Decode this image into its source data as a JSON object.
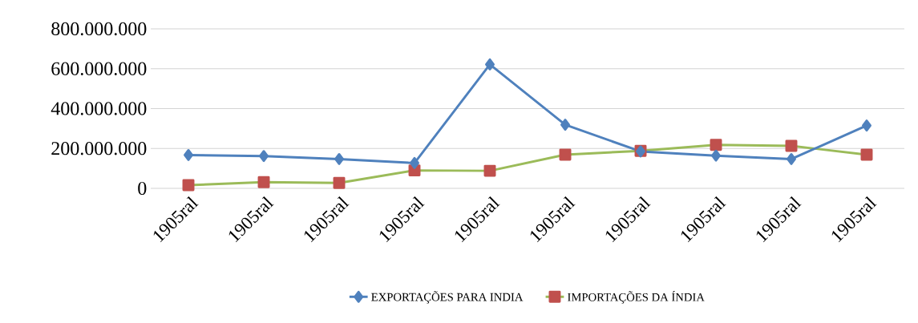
{
  "chart_data": {
    "type": "line",
    "categories": [
      "1905ral",
      "1905ral",
      "1905ral",
      "1905ral",
      "1905ral",
      "1905ral",
      "1905ral",
      "1905ral",
      "1905ral",
      "1905ral"
    ],
    "series": [
      {
        "name": "EXPORTAÇÕES PARA INDIA",
        "color": "#4f81bd",
        "marker": "diamond",
        "values": [
          167000000,
          162000000,
          147000000,
          127000000,
          622000000,
          319000000,
          185000000,
          164000000,
          147000000,
          315000000
        ]
      },
      {
        "name": "IMPORTAÇÕES DA ÍNDIA",
        "color": "#9bbb59",
        "marker": "square",
        "values": [
          16000000,
          31000000,
          27000000,
          90000000,
          88000000,
          169000000,
          188000000,
          218000000,
          213000000,
          169000000
        ]
      }
    ],
    "ylim": [
      0,
      800000000
    ],
    "yticks": [
      0,
      {
        "value": 200000000,
        "label": "200.000.000"
      },
      {
        "value": 400000000,
        "label": "400.000.000"
      },
      {
        "value": 600000000,
        "label": "600.000.000"
      },
      {
        "value": 800000000,
        "label": "800.000.000"
      }
    ],
    "grid": "y",
    "legend": "bottom",
    "line_style": "solid"
  }
}
